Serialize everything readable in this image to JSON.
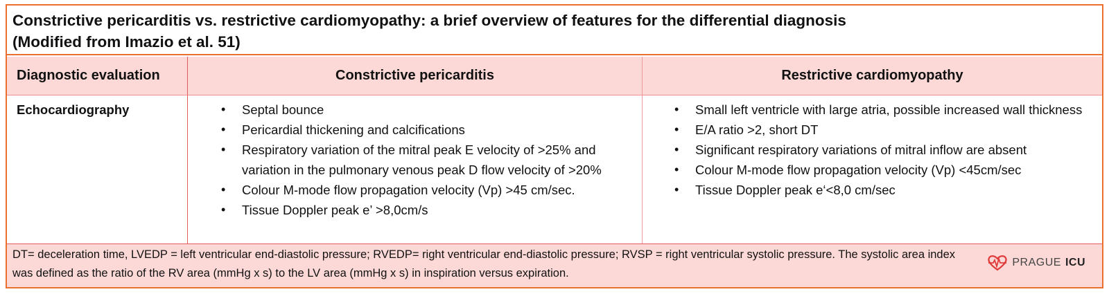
{
  "title": {
    "line1": "Constrictive pericarditis vs. restrictive cardiomyopathy: a brief overview of features for the differential diagnosis",
    "line2": "(Modified from Imazio et al. 51)"
  },
  "header": {
    "col1": "Diagnostic evaluation",
    "col2": "Constrictive pericarditis",
    "col3": "Restrictive cardiomyopathy"
  },
  "row": {
    "label": "Echocardiography",
    "constrictive": [
      "Septal bounce",
      "Pericardial thickening and calcifications",
      "Respiratory variation of the mitral peak E velocity of >25% and variation in the pulmonary venous peak D flow velocity of >20%",
      "Colour M-mode flow propagation velocity (Vp) >45 cm/sec.",
      "Tissue Doppler peak e’ >8,0cm/s"
    ],
    "restrictive": [
      "Small left ventricle with large atria, possible increased wall thickness",
      "E/A ratio >2, short DT",
      "Significant respiratory variations of mitral inflow are absent",
      "Colour M-mode flow propagation velocity (Vp) <45cm/sec",
      "Tissue Doppler peak e‘<8,0 cm/sec"
    ]
  },
  "footer": {
    "line1": "DT= deceleration time, LVEDP = left ventricular end-diastolic pressure; RVEDP= right ventricular end-diastolic pressure; RVSP = right ventricular systolic pressure. The systolic area index",
    "line2": "was defined as the ratio of the RV area (mmHg x s) to the LV area (mmHg x s) in inspiration versus expiration."
  },
  "logo": {
    "name": "PRAGUE",
    "bold": "ICU",
    "icon": "heart-pulse-icon",
    "color": "#e03a3a"
  },
  "bullet": "•",
  "colors": {
    "border": "#e9702f",
    "header_bg": "#fcd9d6",
    "grid": "#e25b5b"
  }
}
